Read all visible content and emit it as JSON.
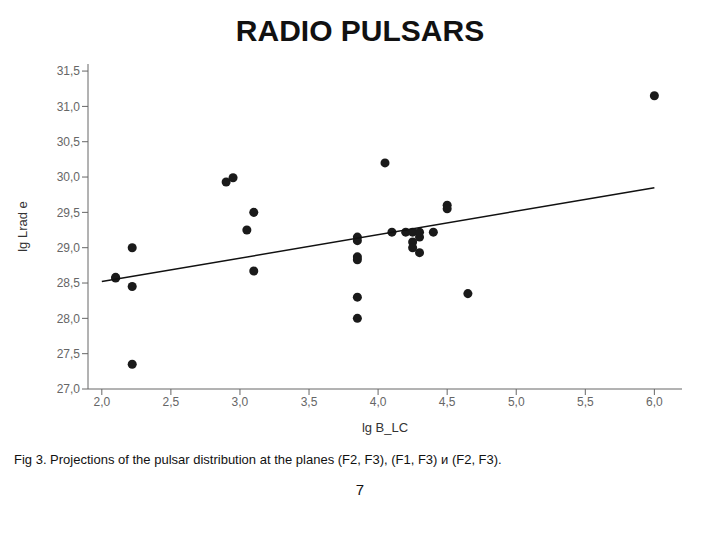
{
  "chart_data": {
    "type": "scatter",
    "title": "RADIO PULSARS",
    "xlabel": "lg B_LC",
    "ylabel": "lg Lrad e",
    "annotations": [
      "Fig 3. Projections of the pulsar distribution at the planes (F2, F3), (F1, F3) и (F2, F3).",
      "7"
    ],
    "grid": false,
    "series": [
      {
        "type": "scatter",
        "marker": "circle",
        "color": "#1a1a1a",
        "x": [
          2.1,
          2.1,
          2.22,
          2.22,
          2.22,
          2.9,
          2.95,
          3.05,
          3.1,
          3.1,
          3.85,
          3.85,
          3.85,
          3.85,
          3.85,
          3.85,
          4.05,
          4.1,
          4.2,
          4.25,
          4.25,
          4.25,
          4.3,
          4.3,
          4.3,
          4.4,
          4.5,
          4.5,
          4.65,
          6.0
        ],
        "values": [
          28.57,
          28.58,
          29.0,
          28.45,
          27.35,
          29.93,
          29.99,
          29.25,
          29.5,
          28.67,
          29.15,
          29.1,
          28.87,
          28.83,
          28.0,
          28.3,
          30.2,
          29.22,
          29.22,
          29.22,
          29.08,
          29.0,
          29.15,
          28.93,
          29.22,
          29.22,
          29.6,
          29.55,
          28.35,
          31.15
        ]
      },
      {
        "type": "line",
        "line_style": "solid",
        "color": "#111111",
        "x": [
          2.0,
          6.0
        ],
        "values": [
          28.52,
          29.85
        ]
      }
    ],
    "xlim": [
      1.9,
      6.2
    ],
    "ylim": [
      27.0,
      31.6
    ],
    "xticks": [
      {
        "value": 2.0,
        "label": "2,0"
      },
      {
        "value": 2.5,
        "label": "2,5"
      },
      {
        "value": 3.0,
        "label": "3,0"
      },
      {
        "value": 3.5,
        "label": "3,5"
      },
      {
        "value": 4.0,
        "label": "4,0"
      },
      {
        "value": 4.5,
        "label": "4,5"
      },
      {
        "value": 5.0,
        "label": "5,0"
      },
      {
        "value": 5.5,
        "label": "5,5"
      },
      {
        "value": 6.0,
        "label": "6,0"
      }
    ],
    "yticks": [
      {
        "value": 27.0,
        "label": "27,0"
      },
      {
        "value": 27.5,
        "label": "27,5"
      },
      {
        "value": 28.0,
        "label": "28,0"
      },
      {
        "value": 28.5,
        "label": "28,5"
      },
      {
        "value": 29.0,
        "label": "29,0"
      },
      {
        "value": 29.5,
        "label": "29,5"
      },
      {
        "value": 30.0,
        "label": "30,0"
      },
      {
        "value": 30.5,
        "label": "30,5"
      },
      {
        "value": 31.0,
        "label": "31,0"
      },
      {
        "value": 31.5,
        "label": "31,5"
      }
    ]
  }
}
